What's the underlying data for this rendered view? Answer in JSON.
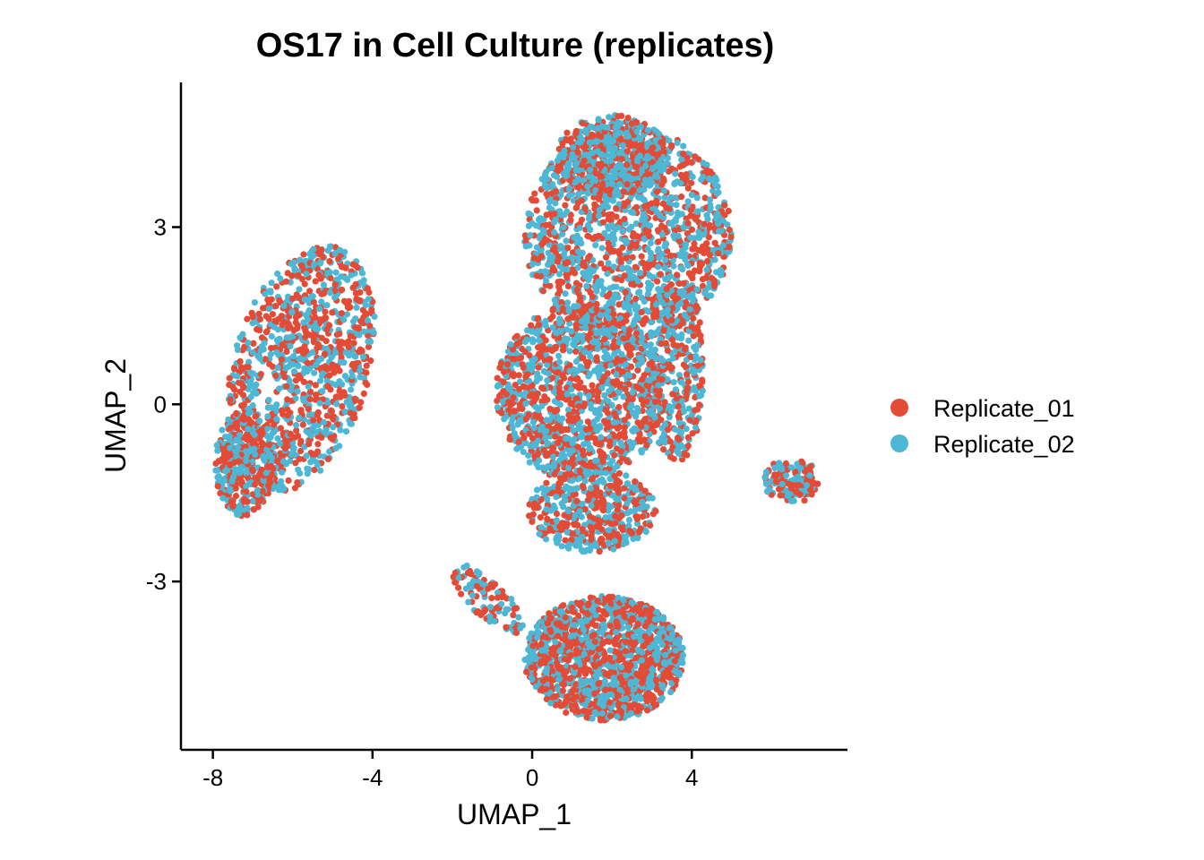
{
  "chart_data": {
    "type": "scatter",
    "title": "OS17 in Cell Culture (replicates)",
    "xlabel": "UMAP_1",
    "ylabel": "UMAP_2",
    "xlim": [
      -8.8,
      7.9
    ],
    "ylim": [
      -5.85,
      5.45
    ],
    "xticks": [
      -8,
      -4,
      0,
      4
    ],
    "xtick_labels": [
      "-8",
      "-4",
      "0",
      "4"
    ],
    "yticks": [
      -3,
      0,
      3
    ],
    "ytick_labels": [
      "-3",
      "0",
      "3"
    ],
    "grid": false,
    "legend_position": "right",
    "series": [
      {
        "name": "Replicate_01",
        "color": "#E34B36"
      },
      {
        "name": "Replicate_02",
        "color": "#4DB8D6"
      }
    ],
    "clusters": [
      {
        "region": "left cluster",
        "center": [
          -5.8,
          0.6
        ],
        "radius": [
          1.6,
          2.3
        ],
        "angle_deg": -35,
        "count": 1100
      },
      {
        "region": "left cluster lower lobe",
        "center": [
          -7.2,
          -1.0
        ],
        "radius": [
          0.75,
          0.9
        ],
        "angle_deg": 0,
        "count": 320
      },
      {
        "region": "upper-center cluster",
        "center": [
          2.4,
          2.9
        ],
        "radius": [
          2.6,
          1.8
        ],
        "angle_deg": 0,
        "count": 1500
      },
      {
        "region": "upper-center top lobe",
        "center": [
          2.0,
          4.2
        ],
        "radius": [
          1.4,
          0.7
        ],
        "angle_deg": 0,
        "count": 450
      },
      {
        "region": "middle cluster",
        "center": [
          1.2,
          0.2
        ],
        "radius": [
          2.1,
          1.5
        ],
        "angle_deg": 0,
        "count": 1300
      },
      {
        "region": "middle right band",
        "center": [
          3.6,
          0.6
        ],
        "radius": [
          0.7,
          1.6
        ],
        "angle_deg": 0,
        "count": 350
      },
      {
        "region": "bridge",
        "center": [
          1.5,
          -1.8
        ],
        "radius": [
          1.6,
          0.7
        ],
        "angle_deg": 0,
        "count": 450
      },
      {
        "region": "bottom cluster",
        "center": [
          1.8,
          -4.3
        ],
        "radius": [
          2.0,
          1.05
        ],
        "angle_deg": 0,
        "count": 1400
      },
      {
        "region": "bottom cluster tail",
        "center": [
          -1.1,
          -3.3
        ],
        "radius": [
          1.0,
          0.35
        ],
        "angle_deg": -30,
        "count": 110
      },
      {
        "region": "small right cluster",
        "center": [
          6.5,
          -1.3
        ],
        "radius": [
          0.7,
          0.38
        ],
        "angle_deg": 0,
        "count": 160
      }
    ]
  }
}
